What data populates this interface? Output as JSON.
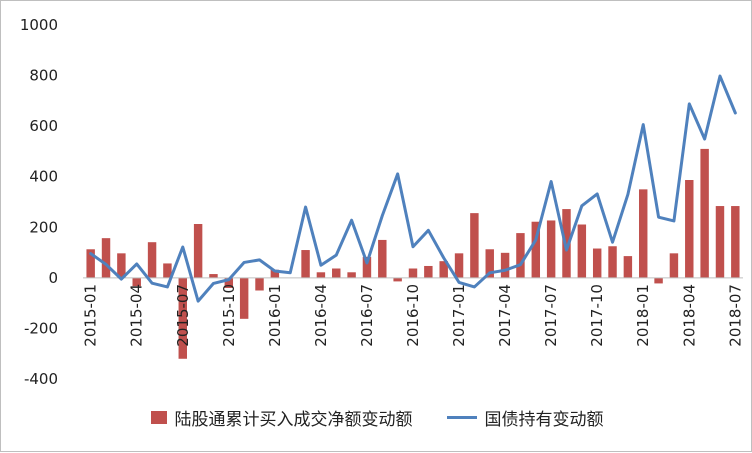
{
  "chart_data": {
    "type": "bar",
    "ylim": [
      -400,
      1000
    ],
    "yticks": [
      -400,
      -200,
      0,
      200,
      400,
      600,
      800,
      1000
    ],
    "x": [
      "2015-01",
      "2015-02",
      "2015-03",
      "2015-04",
      "2015-05",
      "2015-06",
      "2015-07",
      "2015-08",
      "2015-09",
      "2015-10",
      "2015-11",
      "2015-12",
      "2016-01",
      "2016-02",
      "2016-03",
      "2016-04",
      "2016-05",
      "2016-06",
      "2016-07",
      "2016-08",
      "2016-09",
      "2016-10",
      "2016-11",
      "2016-12",
      "2017-01",
      "2017-02",
      "2017-03",
      "2017-04",
      "2017-05",
      "2017-06",
      "2017-07",
      "2017-08",
      "2017-09",
      "2017-10",
      "2017-11",
      "2017-12",
      "2018-01",
      "2018-02",
      "2018-03",
      "2018-04",
      "2018-05",
      "2018-06",
      "2018-07"
    ],
    "x_tick_labels": [
      "2015-01",
      "2015-04",
      "2015-07",
      "2015-10",
      "2016-01",
      "2016-04",
      "2016-07",
      "2016-10",
      "2017-01",
      "2017-04",
      "2017-07",
      "2017-10",
      "2018-01",
      "2018-04",
      "2018-07"
    ],
    "series": [
      {
        "name": "陆股通累计买入成交净额变动额",
        "type": "bar",
        "color": "#c0504d",
        "values": [
          113,
          157,
          97,
          -33,
          141,
          57,
          -320,
          213,
          15,
          -40,
          -162,
          -50,
          32,
          0,
          110,
          22,
          37,
          22,
          83,
          150,
          -14,
          37,
          47,
          66,
          97,
          256,
          113,
          99,
          177,
          222,
          227,
          272,
          211,
          116,
          125,
          86,
          350,
          -22,
          97,
          387,
          510,
          284,
          284
        ]
      },
      {
        "name": "国债持有变动额",
        "type": "line",
        "color": "#4f81bd",
        "values": [
          96,
          53,
          -5,
          55,
          -21,
          -36,
          122,
          -92,
          -22,
          -7,
          61,
          71,
          27,
          20,
          280,
          50,
          90,
          228,
          59,
          246,
          411,
          123,
          188,
          79,
          -18,
          -36,
          20,
          30,
          52,
          150,
          381,
          110,
          285,
          332,
          141,
          330,
          606,
          240,
          225,
          688,
          549,
          798,
          652
        ]
      }
    ]
  }
}
